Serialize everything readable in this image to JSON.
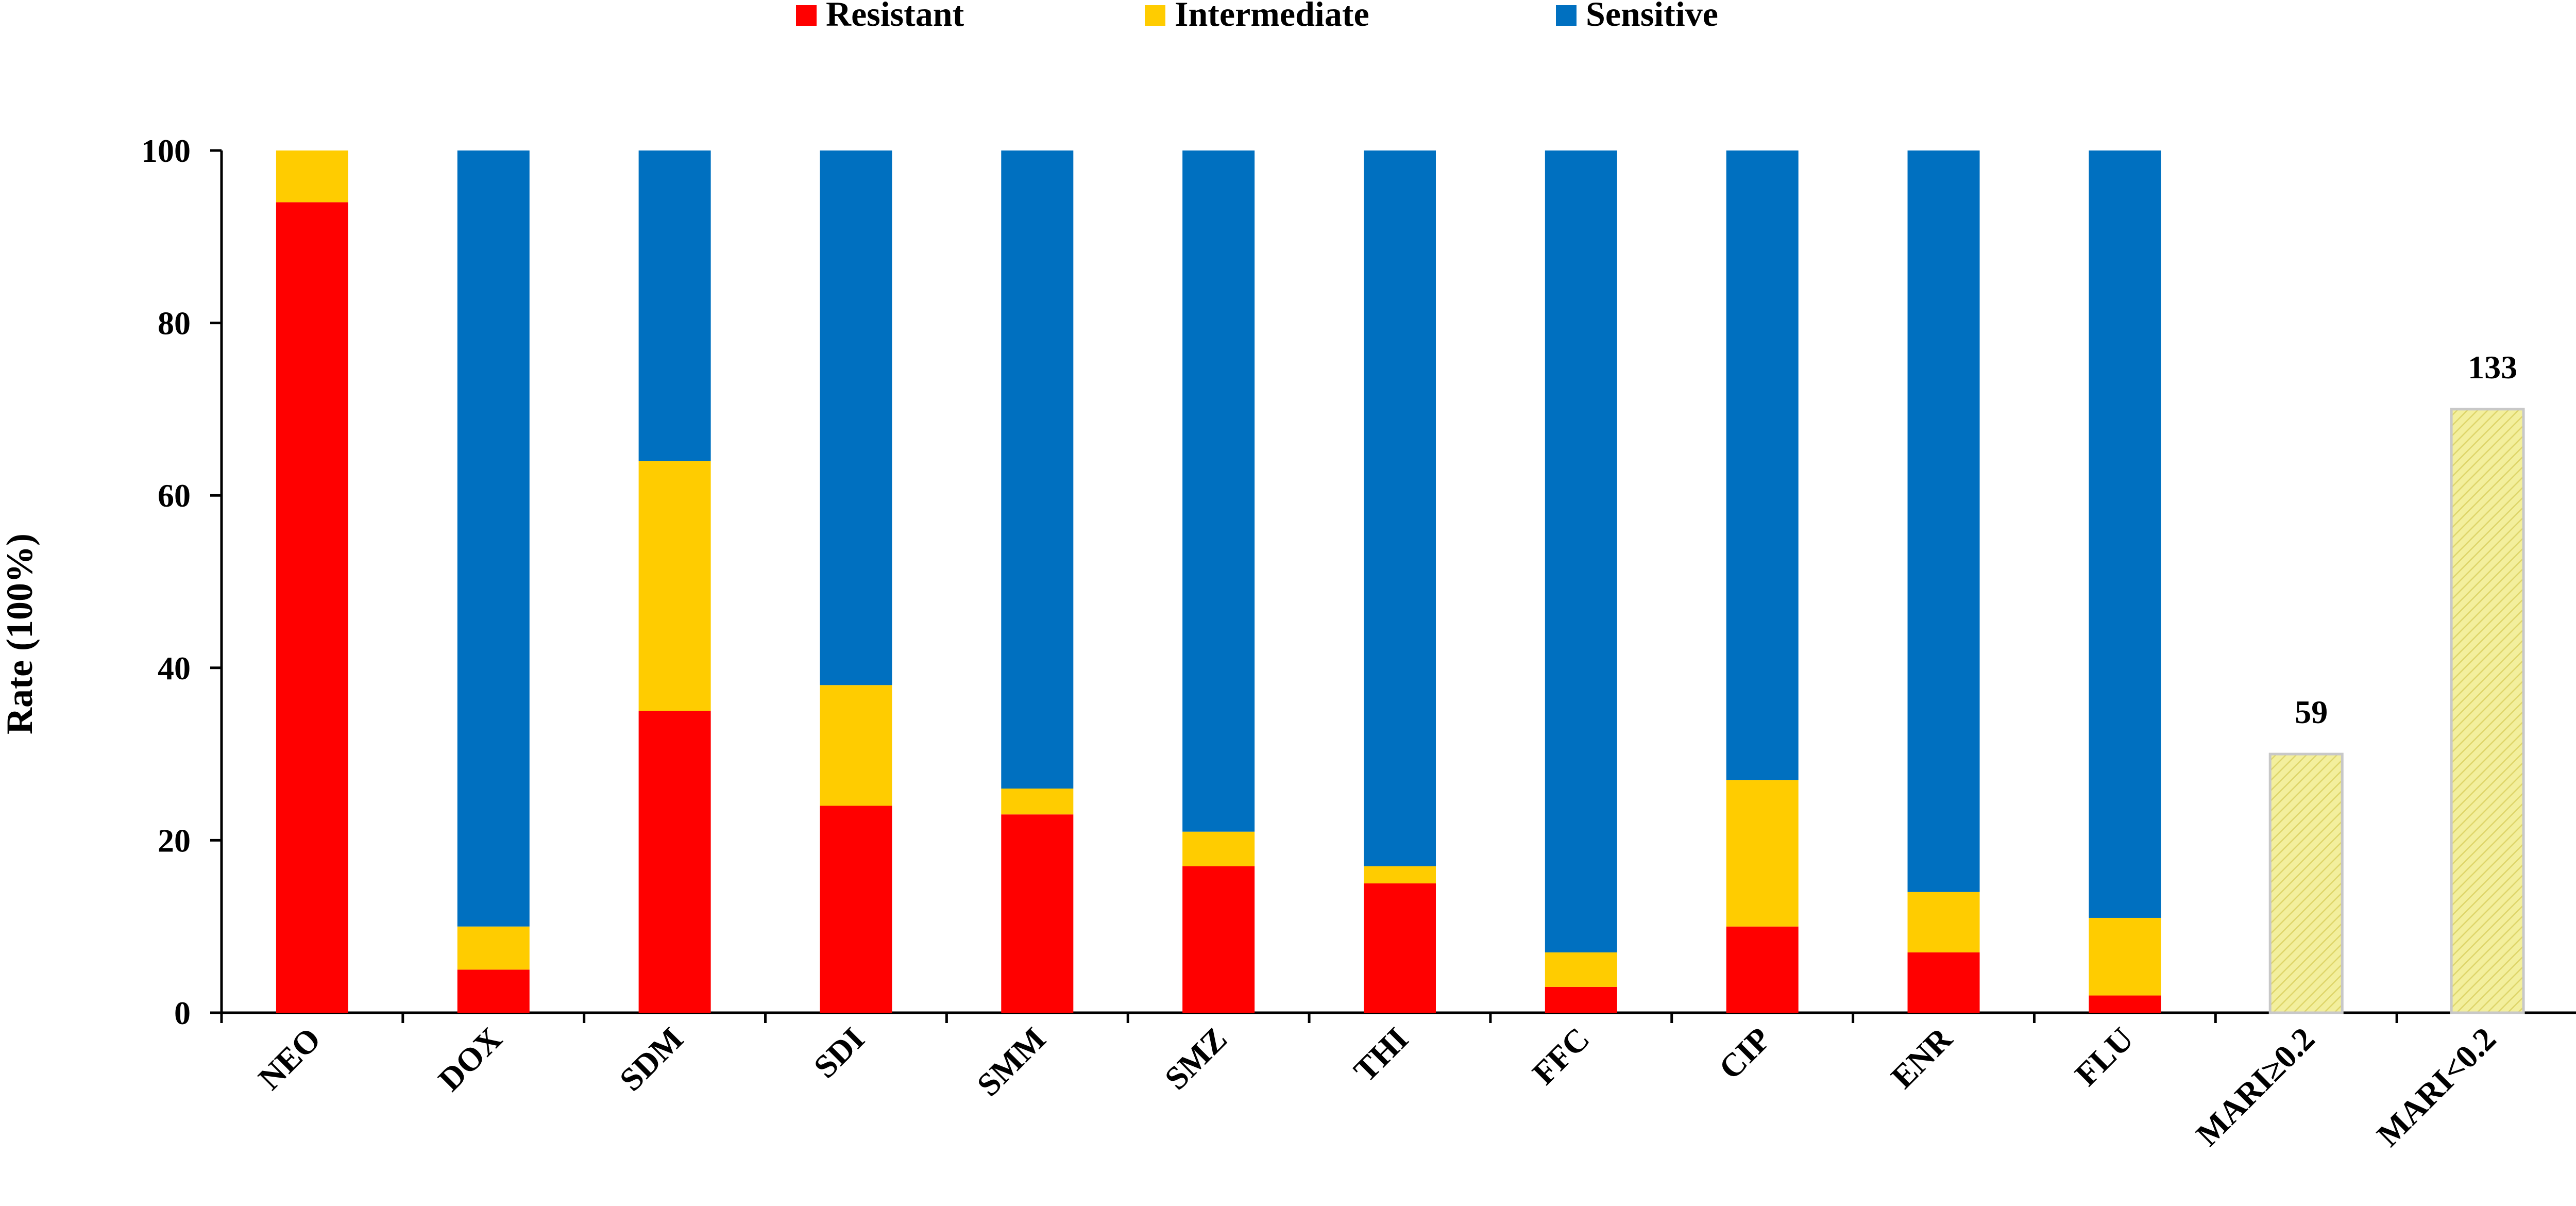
{
  "chart_data": {
    "type": "bar",
    "stacked": true,
    "title": "",
    "xlabel": "",
    "ylabel": "Rate (100%)",
    "ylim": [
      0,
      100
    ],
    "yticks": [
      0,
      20,
      40,
      60,
      80,
      100
    ],
    "grid": false,
    "legend_position": "top-center",
    "categories": [
      "NEO",
      "DOX",
      "SDM",
      "SDI",
      "SMM",
      "SMZ",
      "THI",
      "FFC",
      "CIP",
      "ENR",
      "FLU",
      "MARI≥0.2",
      "MARI<0.2"
    ],
    "series": [
      {
        "name": "Resistant",
        "color": "#ff0000",
        "values": [
          94,
          5,
          35,
          24,
          23,
          17,
          15,
          3,
          10,
          7,
          2,
          null,
          null
        ]
      },
      {
        "name": "Intermediate",
        "color": "#ffcc00",
        "values": [
          6,
          5,
          29,
          14,
          3,
          4,
          2,
          4,
          17,
          7,
          9,
          null,
          null
        ]
      },
      {
        "name": "Sensitive",
        "color": "#0070c0",
        "values": [
          0,
          90,
          36,
          62,
          74,
          79,
          83,
          93,
          73,
          86,
          89,
          null,
          null
        ]
      }
    ],
    "mari_bars": {
      "color": "#f3ef9d",
      "border_color": "#c8c8c8",
      "categories": [
        "MARI≥0.2",
        "MARI<0.2"
      ],
      "values": [
        30,
        70
      ],
      "data_labels": [
        "59",
        "133"
      ]
    }
  }
}
